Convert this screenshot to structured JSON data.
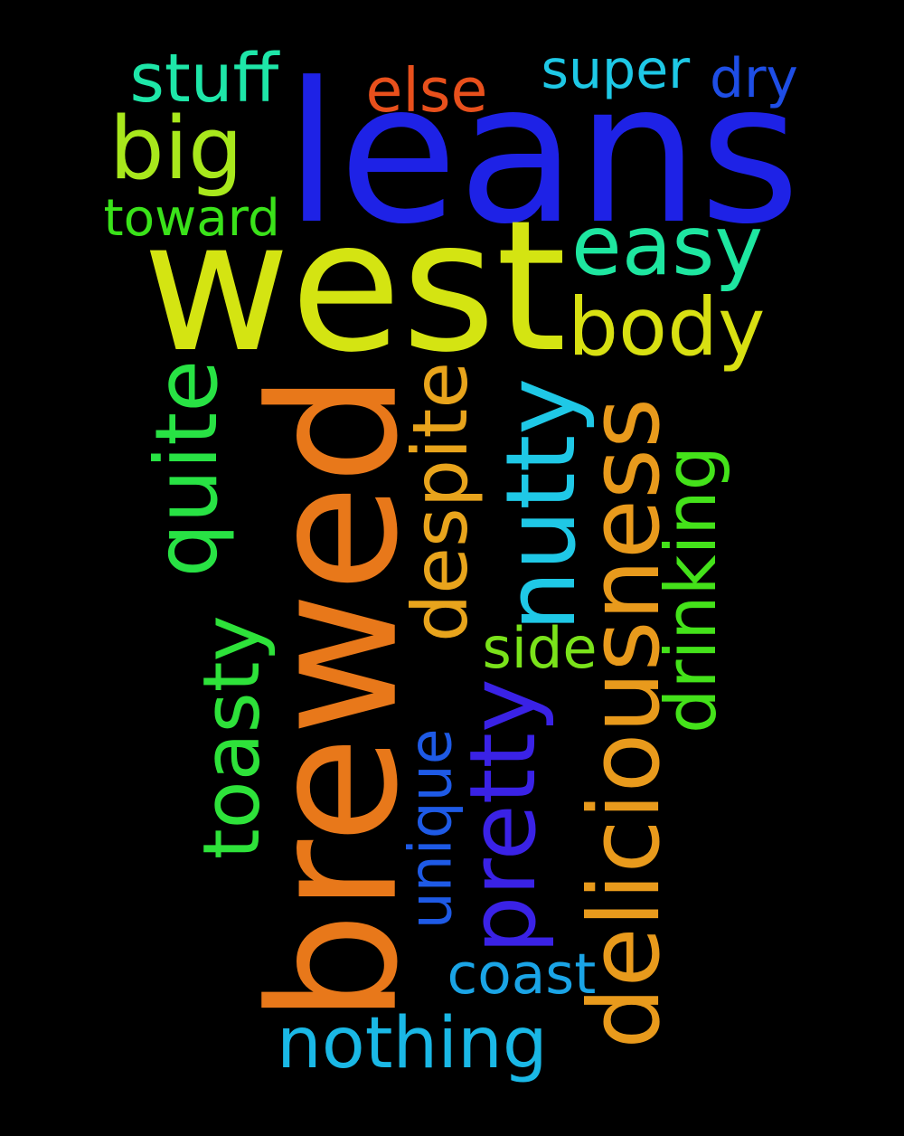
{
  "words": [
    {
      "text": "leans",
      "color": "#1e22e6"
    },
    {
      "text": "west",
      "color": "#d4e412"
    },
    {
      "text": "brewed",
      "color": "#e8781a"
    },
    {
      "text": "deliciousness",
      "color": "#e89a1c"
    },
    {
      "text": "nutty",
      "color": "#1fc8e6"
    },
    {
      "text": "pretty",
      "color": "#3a22e6"
    },
    {
      "text": "despite",
      "color": "#e8a41c"
    },
    {
      "text": "quite",
      "color": "#28e244"
    },
    {
      "text": "toasty",
      "color": "#2ee23a"
    },
    {
      "text": "drinking",
      "color": "#44e21a"
    },
    {
      "text": "unique",
      "color": "#1e5ae6"
    },
    {
      "text": "body",
      "color": "#d8e012"
    },
    {
      "text": "easy",
      "color": "#1ee6a0"
    },
    {
      "text": "big",
      "color": "#a8e81c"
    },
    {
      "text": "nothing",
      "color": "#1ab8e6"
    },
    {
      "text": "coast",
      "color": "#1aa4e6"
    },
    {
      "text": "side",
      "color": "#7ae21a"
    },
    {
      "text": "stuff",
      "color": "#1ee6a8"
    },
    {
      "text": "else",
      "color": "#e8501c"
    },
    {
      "text": "super",
      "color": "#1ec8e6"
    },
    {
      "text": "dry",
      "color": "#1e4ee6"
    },
    {
      "text": "toward",
      "color": "#3ae21a"
    }
  ]
}
